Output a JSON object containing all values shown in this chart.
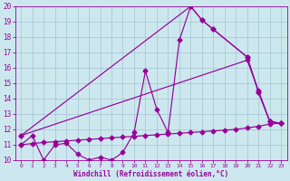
{
  "background_color": "#cce8ee",
  "line_color": "#990099",
  "xlim": [
    -0.5,
    23.5
  ],
  "ylim": [
    10,
    20
  ],
  "xticks": [
    0,
    1,
    2,
    3,
    4,
    5,
    6,
    7,
    8,
    9,
    10,
    11,
    12,
    13,
    14,
    15,
    16,
    17,
    18,
    19,
    20,
    21,
    22,
    23
  ],
  "yticks": [
    10,
    11,
    12,
    13,
    14,
    15,
    16,
    17,
    18,
    19,
    20
  ],
  "xlabel": "Windchill (Refroidissement éolien,°C)",
  "series1_x": [
    0,
    1,
    2,
    3,
    4,
    5,
    6,
    7,
    8,
    9,
    10,
    11,
    12,
    13,
    14,
    15,
    16,
    17,
    20,
    21,
    22,
    23
  ],
  "series1_y": [
    11.0,
    11.6,
    10.0,
    11.0,
    11.1,
    10.4,
    10.0,
    10.2,
    10.0,
    10.5,
    11.8,
    15.8,
    13.3,
    11.8,
    17.8,
    20.0,
    19.1,
    18.5,
    16.7,
    14.4,
    12.5,
    12.4
  ],
  "series2_x": [
    0,
    1,
    2,
    3,
    4,
    5,
    6,
    7,
    8,
    9,
    10,
    11,
    12,
    13,
    14,
    15,
    16,
    17,
    18,
    19,
    20,
    21,
    22,
    23
  ],
  "series2_y": [
    11.0,
    11.08,
    11.15,
    11.2,
    11.25,
    11.3,
    11.35,
    11.4,
    11.45,
    11.5,
    11.55,
    11.6,
    11.65,
    11.7,
    11.75,
    11.8,
    11.85,
    11.9,
    11.95,
    12.0,
    12.1,
    12.2,
    12.35,
    12.4
  ],
  "series3_x": [
    0,
    20,
    21,
    22,
    23
  ],
  "series3_y": [
    11.6,
    16.5,
    14.5,
    12.5,
    12.4
  ],
  "series4_x": [
    0,
    15,
    16,
    17,
    20,
    21,
    22,
    23
  ],
  "series4_y": [
    11.6,
    20.0,
    19.1,
    18.5,
    16.7,
    14.4,
    12.5,
    12.4
  ]
}
